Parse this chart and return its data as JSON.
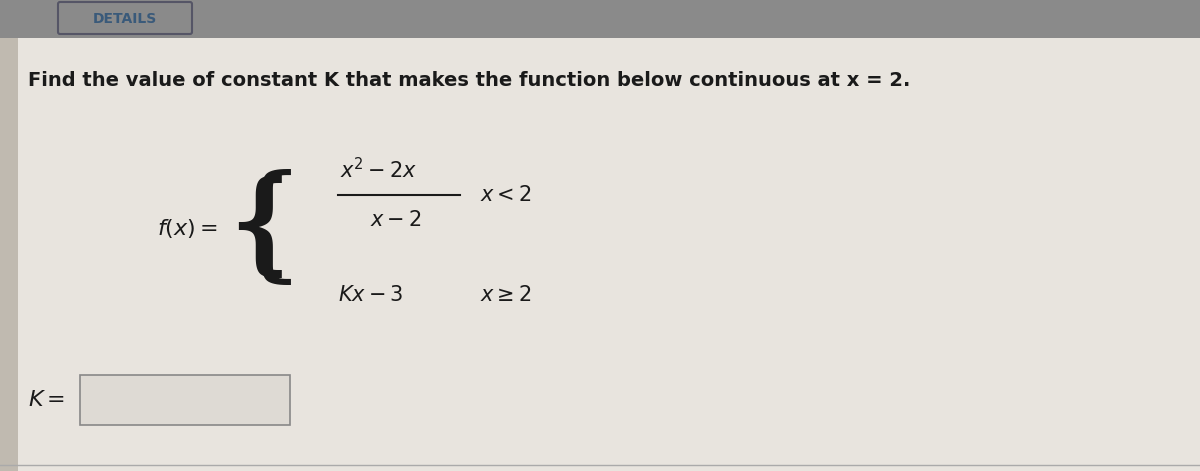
{
  "bg_color": "#c8c2b8",
  "header_bg": "#8a8a8a",
  "header_text": "DETAILS",
  "header_text_color": "#3a5a7a",
  "main_bg": "#e8e4de",
  "problem_text": "Find the value of constant K that makes the function below continuous at x = 2.",
  "problem_text_color": "#1a1a1a",
  "math_color": "#1a1a1a",
  "answer_box_fill": "#dedad4",
  "answer_box_border": "#888888",
  "sep_line_color": "#aaaaaa",
  "details_box_border": "#555566"
}
